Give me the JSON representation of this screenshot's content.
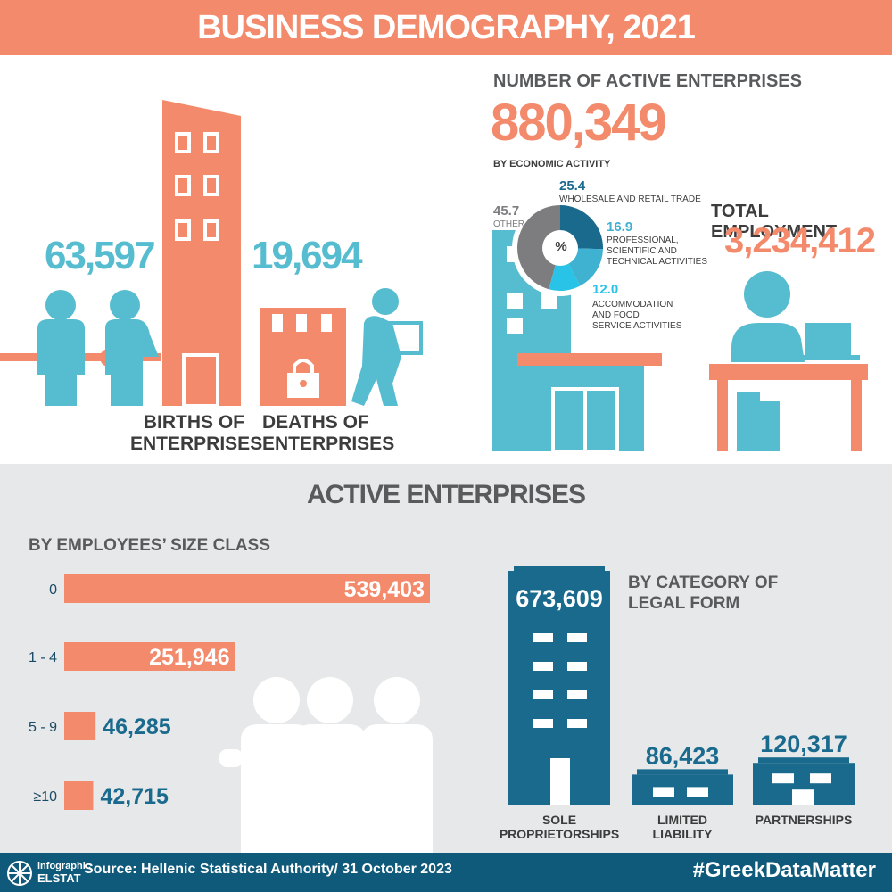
{
  "title": "BUSINESS DEMOGRAPHY, 2021",
  "births": {
    "value": "63,597",
    "label_line1": "BIRTHS OF",
    "label_line2": "ENTERPRISES"
  },
  "deaths": {
    "value": "19,694",
    "label_line1": "DEATHS OF",
    "label_line2": "ENTERPRISES"
  },
  "active": {
    "heading": "NUMBER OF ACTIVE ENTERPRISES",
    "value": "880,349",
    "by_activity": "BY ECONOMIC ACTIVITY",
    "donut_center": "%"
  },
  "employment": {
    "heading": "TOTAL EMPLOYMENT",
    "value": "3,234,412"
  },
  "bottom": {
    "heading": "ACTIVE ENTERPRISES",
    "size_heading": "BY EMPLOYEES’ SIZE CLASS",
    "legal_heading_line1": "BY CATEGORY OF",
    "legal_heading_line2": "LEGAL FORM"
  },
  "footer": {
    "logo_line1": "infographic",
    "logo_line2": "ELSTAT",
    "source": "Source: Hellenic Statistical Authority/ 31 October 2023",
    "hashtag": "#GreekDataMatter"
  },
  "colors": {
    "coral": "#f28a6b",
    "teal": "#56bccf",
    "navy": "#1a6a8e",
    "grey": "#7d7d7f",
    "cyan": "#28c3e6"
  },
  "chart_data": [
    {
      "type": "pie",
      "title": "BY ECONOMIC ACTIVITY",
      "unit": "%",
      "slices": [
        {
          "label": "WHOLESALE AND RETAIL TRADE",
          "label_lines": [
            "WHOLESALE AND RETAIL TRADE"
          ],
          "value": 25.4,
          "value_text": "25.4",
          "color": "#1a6a8e"
        },
        {
          "label": "PROFESSIONAL, SCIENTIFIC AND TECHNICAL ACTIVITIES",
          "label_lines": [
            "PROFESSIONAL,",
            "SCIENTIFIC AND",
            "TECHNICAL ACTIVITIES"
          ],
          "value": 16.9,
          "value_text": "16.9",
          "color": "#3fb1d1"
        },
        {
          "label": "ACCOMMODATION AND FOOD SERVICE ACTIVITIES",
          "label_lines": [
            "ACCOMMODATION",
            "AND FOOD",
            "SERVICE ACTIVITIES"
          ],
          "value": 12.0,
          "value_text": "12.0",
          "color": "#28c3e6"
        },
        {
          "label": "OTHER",
          "label_lines": [
            "OTHER"
          ],
          "value": 45.7,
          "value_text": "45.7",
          "color": "#7d7d7f"
        }
      ]
    },
    {
      "type": "bar",
      "orientation": "horizontal",
      "title": "BY EMPLOYEES’ SIZE CLASS",
      "categories": [
        "0",
        "1 - 4",
        "5 - 9",
        "≥10"
      ],
      "values": [
        539403,
        251946,
        46285,
        42715
      ],
      "value_labels": [
        "539,403",
        "251,946",
        "46,285",
        "42,715"
      ]
    },
    {
      "type": "bar",
      "orientation": "vertical",
      "title": "BY CATEGORY OF LEGAL FORM",
      "categories": [
        "SOLE PROPRIETORSHIPS",
        "LIMITED LIABILITY",
        "PARTNERSHIPS"
      ],
      "category_lines": [
        [
          "SOLE",
          "PROPRIETORSHIPS"
        ],
        [
          "LIMITED",
          "LIABILITY"
        ],
        [
          "PARTNERSHIPS"
        ]
      ],
      "values": [
        673609,
        86423,
        120317
      ],
      "value_labels": [
        "673,609",
        "86,423",
        "120,317"
      ]
    }
  ]
}
